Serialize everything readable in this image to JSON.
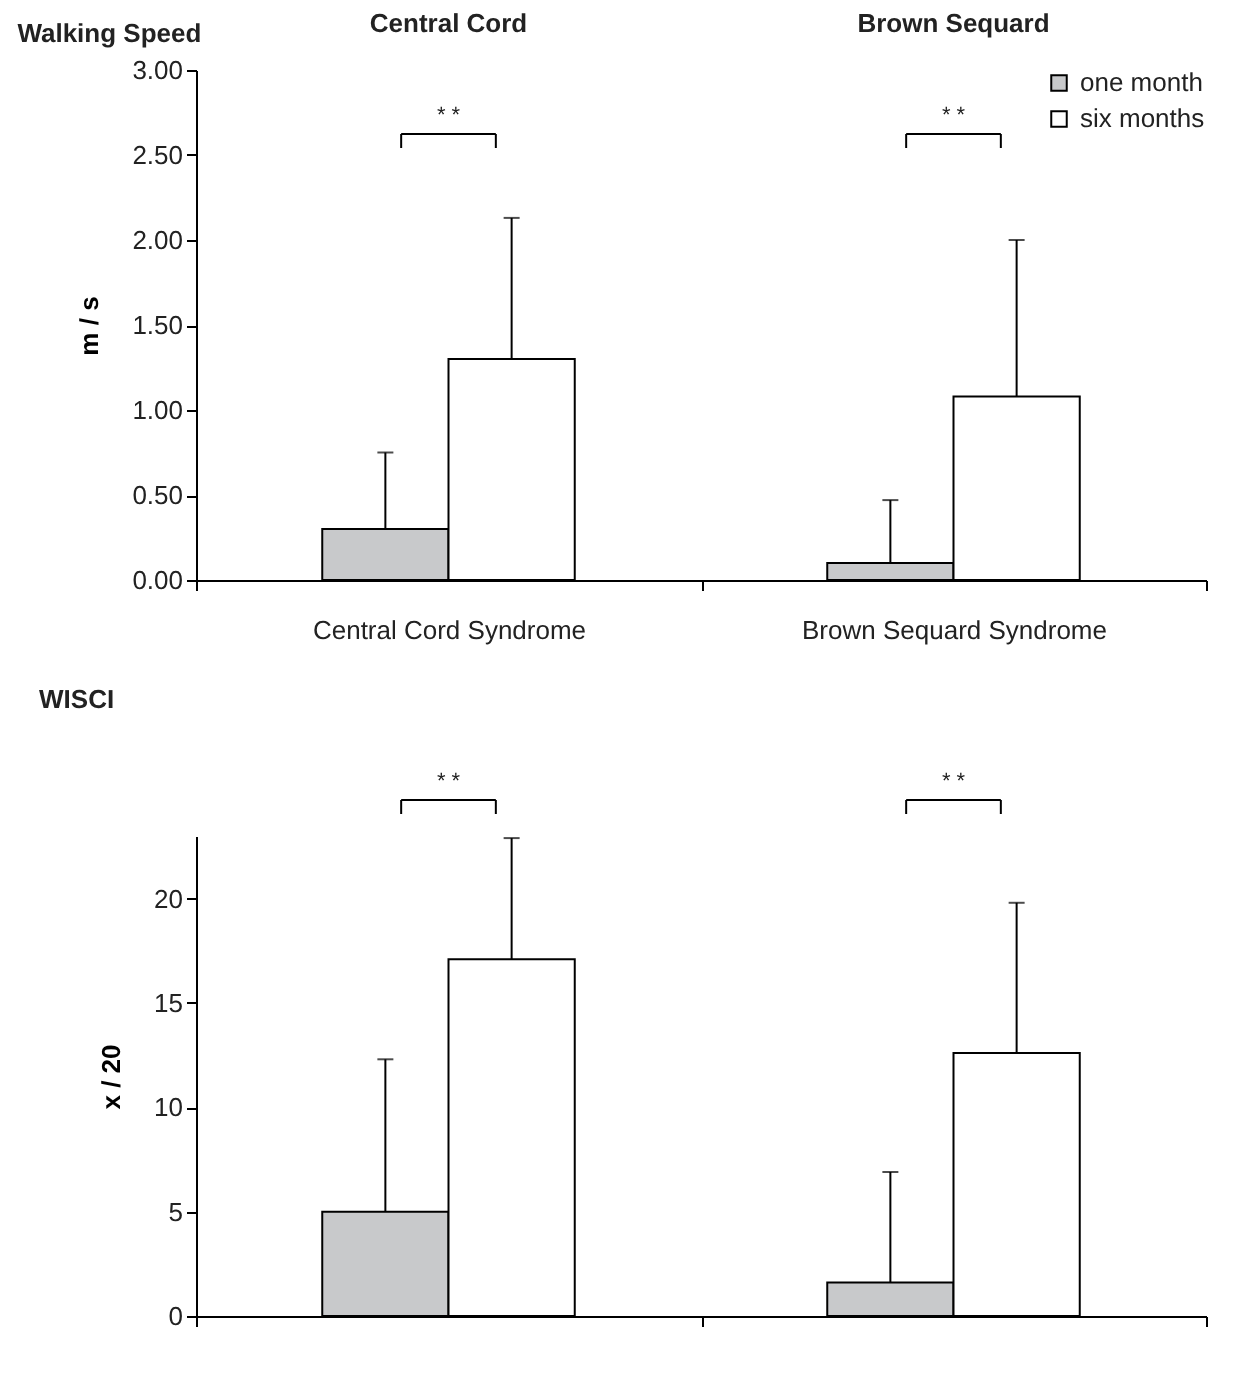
{
  "chart_data": [
    {
      "type": "bar",
      "title": "Walking Speed",
      "ylabel": "m / s",
      "categories": [
        "Central Cord Syndrome",
        "Brown Sequard Syndrome"
      ],
      "series": [
        {
          "name": "one month",
          "color": "#c8c9cb",
          "values": [
            0.3,
            0.1
          ],
          "errors": [
            [
              0.3,
              0.75
            ],
            [
              0.1,
              0.47
            ]
          ]
        },
        {
          "name": "six months",
          "color": "#ffffff",
          "values": [
            1.3,
            1.08
          ],
          "errors": [
            [
              1.3,
              2.13
            ],
            [
              1.08,
              2.0
            ]
          ]
        }
      ],
      "ylim": [
        0,
        3
      ],
      "yticks": [
        {
          "value": 0,
          "label": "0.00"
        },
        {
          "value": 0.5,
          "label": "0.50"
        },
        {
          "value": 1,
          "label": "1.00"
        },
        {
          "value": 1.5,
          "label": "1.50"
        },
        {
          "value": 2,
          "label": "2.00"
        },
        {
          "value": 2.5,
          "label": "2.50"
        },
        {
          "value": 3,
          "label": "3.00"
        }
      ],
      "legend": "top right",
      "annotations": [
        "Central Cord",
        "Brown Sequard",
        "* *",
        "* *"
      ]
    },
    {
      "type": "bar",
      "title": "WISCI",
      "ylabel": "x / 20",
      "categories": [
        null,
        null
      ],
      "series": [
        {
          "color": "#c8c9cb",
          "values": [
            5.0,
            1.6
          ],
          "errors": [
            [
              5.0,
              12.3
            ],
            [
              1.6,
              6.9
            ]
          ]
        },
        {
          "color": "#ffffff",
          "values": [
            17.1,
            12.6
          ],
          "errors": [
            [
              17.1,
              22.9
            ],
            [
              12.6,
              19.8
            ]
          ]
        }
      ],
      "ylim": [
        0,
        23
      ],
      "yticks": [
        0,
        5,
        10,
        15,
        20
      ],
      "tick_labels": "y",
      "annotations": [
        "* *",
        "* *"
      ]
    }
  ]
}
